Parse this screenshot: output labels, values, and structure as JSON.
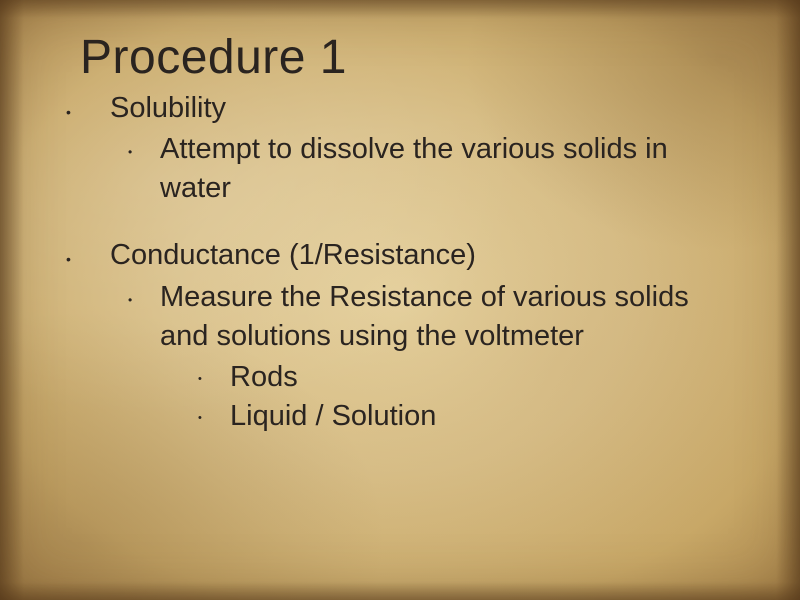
{
  "slide": {
    "title": "Procedure 1",
    "background_colors": {
      "base": "#e8d4a0",
      "mid": "#d9c089",
      "edge": "#c9a968",
      "corner": "#a8844a"
    },
    "text_color": "#2a2420",
    "title_fontsize": 48,
    "body_fontsize": 29,
    "items": [
      {
        "heading": "Solubility",
        "sub": [
          {
            "text": "Attempt to dissolve the various solids in water"
          }
        ]
      },
      {
        "heading": "Conductance (1/Resistance)",
        "sub": [
          {
            "text": "Measure the Resistance of various solids and solutions using the voltmeter",
            "sub": [
              {
                "text": "Rods"
              },
              {
                "text": "Liquid / Solution"
              }
            ]
          }
        ]
      }
    ]
  }
}
